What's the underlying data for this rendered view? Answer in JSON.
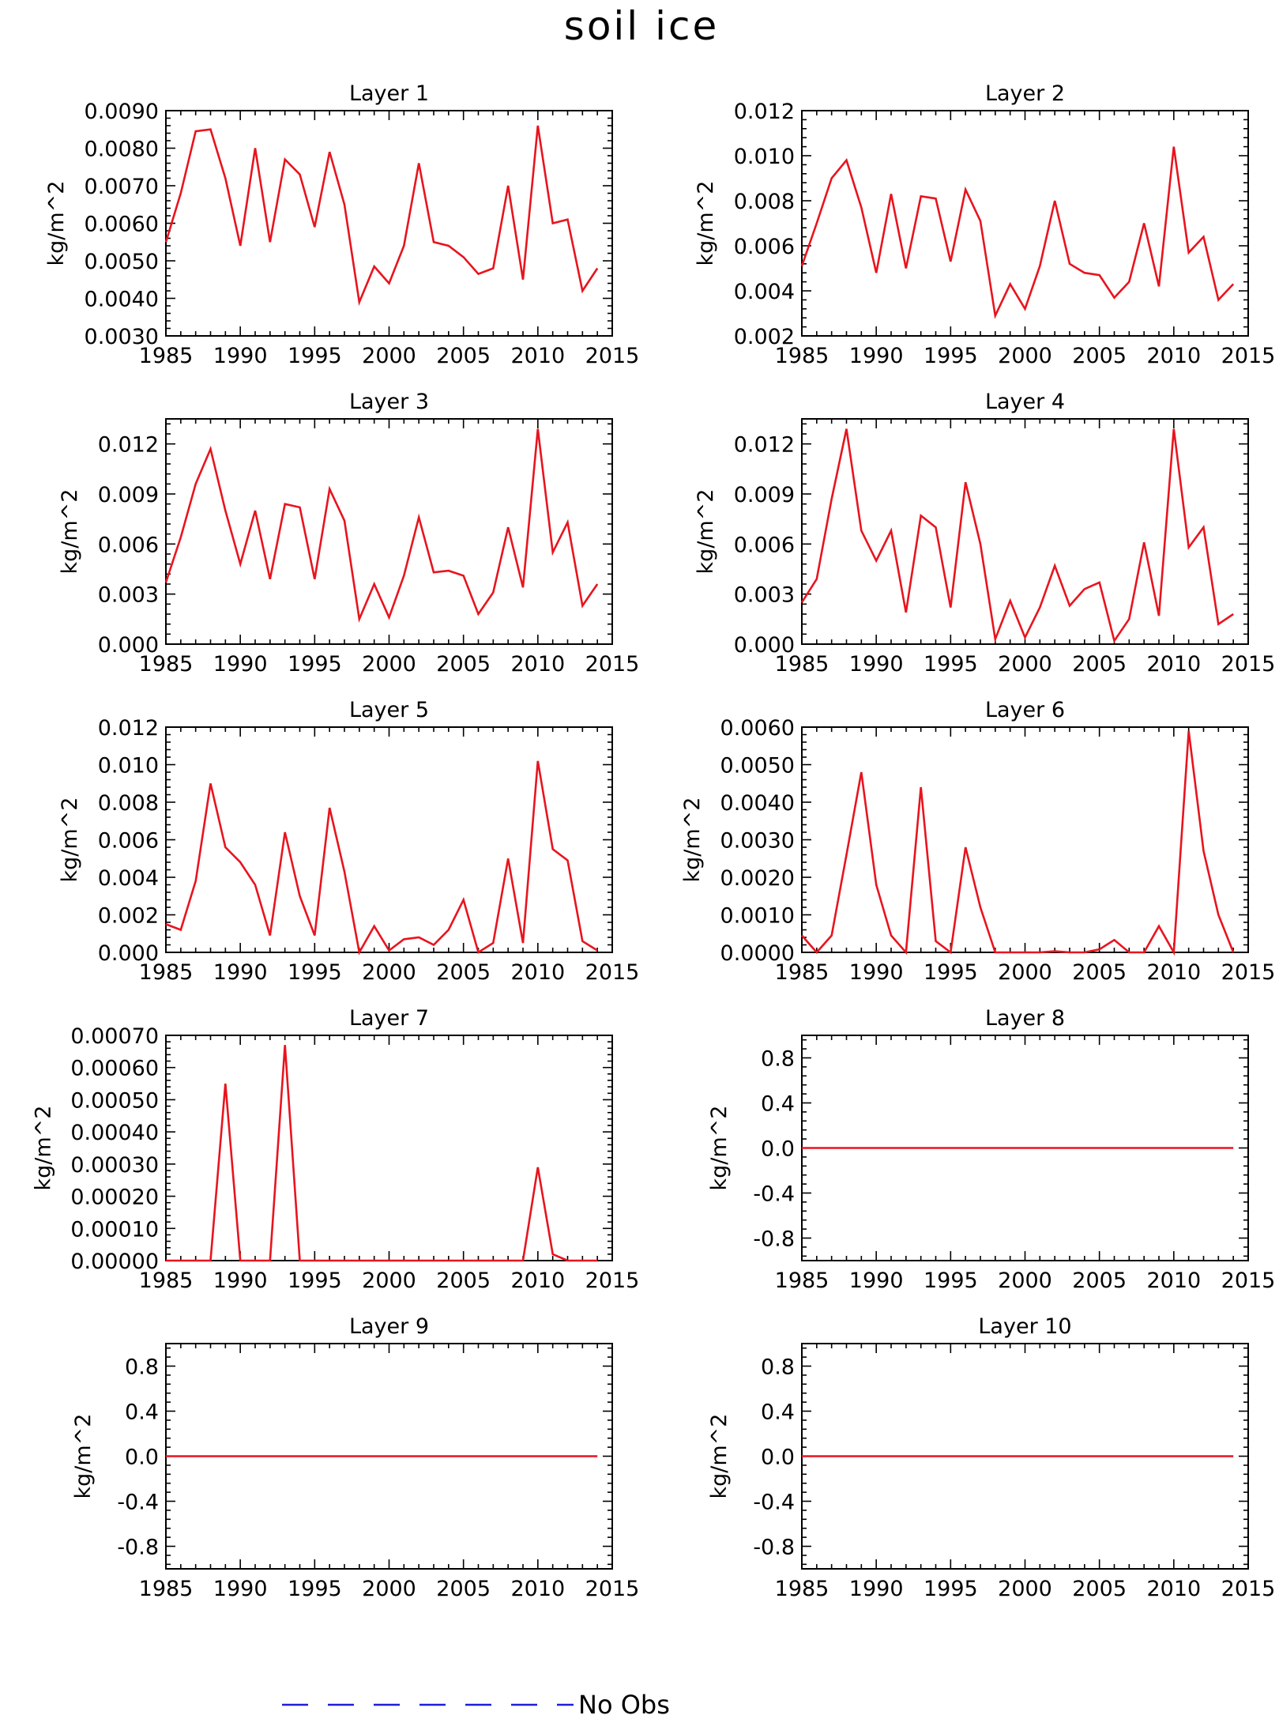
{
  "figure": {
    "title": "soil ice",
    "legend": {
      "label": "No Obs",
      "color": "#1f1fd6",
      "style": "dashed"
    },
    "series_color": "#e8141e"
  },
  "chart_data": [
    {
      "type": "line",
      "title": "Layer 1",
      "ylabel": "kg/m^2",
      "xlim": [
        1985,
        2015
      ],
      "ylim": [
        0.003,
        0.009
      ],
      "yticks": [
        "0.0030",
        "0.0040",
        "0.0050",
        "0.0060",
        "0.0070",
        "0.0080",
        "0.0090"
      ],
      "yticks_values": [
        0.003,
        0.004,
        0.005,
        0.006,
        0.007,
        0.008,
        0.009
      ],
      "xticks": [
        1985,
        1990,
        1995,
        2000,
        2005,
        2010,
        2015
      ],
      "x": [
        1985,
        1986,
        1987,
        1988,
        1989,
        1990,
        1991,
        1992,
        1993,
        1994,
        1995,
        1996,
        1997,
        1998,
        1999,
        2000,
        2001,
        2002,
        2003,
        2004,
        2005,
        2006,
        2007,
        2008,
        2009,
        2010,
        2011,
        2012,
        2013,
        2014
      ],
      "y": [
        0.0055,
        0.0068,
        0.00845,
        0.0085,
        0.0072,
        0.0054,
        0.008,
        0.0055,
        0.0077,
        0.0073,
        0.0059,
        0.0079,
        0.0065,
        0.0039,
        0.00485,
        0.0044,
        0.0054,
        0.0076,
        0.0055,
        0.0054,
        0.0051,
        0.00465,
        0.0048,
        0.007,
        0.0045,
        0.0086,
        0.006,
        0.0061,
        0.0042,
        0.0048
      ]
    },
    {
      "type": "line",
      "title": "Layer 2",
      "ylabel": "kg/m^2",
      "xlim": [
        1985,
        2015
      ],
      "ylim": [
        0.002,
        0.012
      ],
      "yticks": [
        "0.002",
        "0.004",
        "0.006",
        "0.008",
        "0.010",
        "0.012"
      ],
      "yticks_values": [
        0.002,
        0.004,
        0.006,
        0.008,
        0.01,
        0.012
      ],
      "xticks": [
        1985,
        1990,
        1995,
        2000,
        2005,
        2010,
        2015
      ],
      "x": [
        1985,
        1986,
        1987,
        1988,
        1989,
        1990,
        1991,
        1992,
        1993,
        1994,
        1995,
        1996,
        1997,
        1998,
        1999,
        2000,
        2001,
        2002,
        2003,
        2004,
        2005,
        2006,
        2007,
        2008,
        2009,
        2010,
        2011,
        2012,
        2013,
        2014
      ],
      "y": [
        0.0051,
        0.007,
        0.009,
        0.0098,
        0.0077,
        0.0048,
        0.0083,
        0.005,
        0.0082,
        0.0081,
        0.0053,
        0.0085,
        0.0071,
        0.0029,
        0.0043,
        0.0032,
        0.0051,
        0.008,
        0.0052,
        0.0048,
        0.0047,
        0.0037,
        0.0044,
        0.007,
        0.0042,
        0.0104,
        0.0057,
        0.0064,
        0.0036,
        0.0043
      ]
    },
    {
      "type": "line",
      "title": "Layer 3",
      "ylabel": "kg/m^2",
      "xlim": [
        1985,
        2015
      ],
      "ylim": [
        0,
        0.0135
      ],
      "yticks": [
        "0.000",
        "0.003",
        "0.006",
        "0.009",
        "0.012"
      ],
      "yticks_values": [
        0,
        0.003,
        0.006,
        0.009,
        0.012
      ],
      "xticks": [
        1985,
        1990,
        1995,
        2000,
        2005,
        2010,
        2015
      ],
      "x": [
        1985,
        1986,
        1987,
        1988,
        1989,
        1990,
        1991,
        1992,
        1993,
        1994,
        1995,
        1996,
        1997,
        1998,
        1999,
        2000,
        2001,
        2002,
        2003,
        2004,
        2005,
        2006,
        2007,
        2008,
        2009,
        2010,
        2011,
        2012,
        2013,
        2014
      ],
      "y": [
        0.0037,
        0.0064,
        0.0096,
        0.0117,
        0.008,
        0.0048,
        0.008,
        0.0039,
        0.0084,
        0.0082,
        0.0039,
        0.0093,
        0.0074,
        0.0015,
        0.0036,
        0.0016,
        0.0041,
        0.0076,
        0.0043,
        0.0044,
        0.0041,
        0.0018,
        0.0031,
        0.007,
        0.0034,
        0.0129,
        0.0055,
        0.0073,
        0.0023,
        0.0036
      ]
    },
    {
      "type": "line",
      "title": "Layer 4",
      "ylabel": "kg/m^2",
      "xlim": [
        1985,
        2015
      ],
      "ylim": [
        0,
        0.0135
      ],
      "yticks": [
        "0.000",
        "0.003",
        "0.006",
        "0.009",
        "0.012"
      ],
      "yticks_values": [
        0,
        0.003,
        0.006,
        0.009,
        0.012
      ],
      "xticks": [
        1985,
        1990,
        1995,
        2000,
        2005,
        2010,
        2015
      ],
      "x": [
        1985,
        1986,
        1987,
        1988,
        1989,
        1990,
        1991,
        1992,
        1993,
        1994,
        1995,
        1996,
        1997,
        1998,
        1999,
        2000,
        2001,
        2002,
        2003,
        2004,
        2005,
        2006,
        2007,
        2008,
        2009,
        2010,
        2011,
        2012,
        2013,
        2014
      ],
      "y": [
        0.0025,
        0.0039,
        0.0087,
        0.0129,
        0.0068,
        0.005,
        0.0068,
        0.0019,
        0.0077,
        0.007,
        0.0022,
        0.0097,
        0.006,
        0.0003,
        0.0026,
        0.0004,
        0.0022,
        0.0047,
        0.0023,
        0.0033,
        0.0037,
        0.0002,
        0.0015,
        0.0061,
        0.0017,
        0.0129,
        0.0058,
        0.007,
        0.0012,
        0.0018
      ]
    },
    {
      "type": "line",
      "title": "Layer 5",
      "ylabel": "kg/m^2",
      "xlim": [
        1985,
        2015
      ],
      "ylim": [
        0,
        0.012
      ],
      "yticks": [
        "0.000",
        "0.002",
        "0.004",
        "0.006",
        "0.008",
        "0.010",
        "0.012"
      ],
      "yticks_values": [
        0,
        0.002,
        0.004,
        0.006,
        0.008,
        0.01,
        0.012
      ],
      "xticks": [
        1985,
        1990,
        1995,
        2000,
        2005,
        2010,
        2015
      ],
      "x": [
        1985,
        1986,
        1987,
        1988,
        1989,
        1990,
        1991,
        1992,
        1993,
        1994,
        1995,
        1996,
        1997,
        1998,
        1999,
        2000,
        2001,
        2002,
        2003,
        2004,
        2005,
        2006,
        2007,
        2008,
        2009,
        2010,
        2011,
        2012,
        2013,
        2014
      ],
      "y": [
        0.0015,
        0.0012,
        0.0038,
        0.009,
        0.0056,
        0.0048,
        0.0036,
        0.0009,
        0.0064,
        0.003,
        0.0009,
        0.0077,
        0.0043,
        0.0,
        0.0014,
        0.0001,
        0.0007,
        0.0008,
        0.0004,
        0.0012,
        0.0028,
        0.0,
        0.0005,
        0.005,
        0.0005,
        0.0102,
        0.0055,
        0.0049,
        0.0006,
        0.0001
      ]
    },
    {
      "type": "line",
      "title": "Layer 6",
      "ylabel": "kg/m^2",
      "xlim": [
        1985,
        2015
      ],
      "ylim": [
        0,
        0.006
      ],
      "yticks": [
        "0.0000",
        "0.0010",
        "0.0020",
        "0.0030",
        "0.0040",
        "0.0050",
        "0.0060"
      ],
      "yticks_values": [
        0,
        0.001,
        0.002,
        0.003,
        0.004,
        0.005,
        0.006
      ],
      "xticks": [
        1985,
        1990,
        1995,
        2000,
        2005,
        2010,
        2015
      ],
      "x": [
        1985,
        1986,
        1987,
        1988,
        1989,
        1990,
        1991,
        1992,
        1993,
        1994,
        1995,
        1996,
        1997,
        1998,
        1999,
        2000,
        2001,
        2002,
        2003,
        2004,
        2005,
        2006,
        2007,
        2008,
        2009,
        2010,
        2011,
        2012,
        2013,
        2014
      ],
      "y": [
        0.00045,
        0.0,
        0.00045,
        0.0026,
        0.0048,
        0.0018,
        0.00045,
        0.0,
        0.0044,
        0.0003,
        0.0,
        0.0028,
        0.0012,
        0.0,
        0.0,
        0.0,
        0.0,
        3e-05,
        0.0,
        0.0,
        8e-05,
        0.00033,
        0.0,
        0.0,
        0.0007,
        0.0,
        0.0059,
        0.0027,
        0.001,
        0.0
      ]
    },
    {
      "type": "line",
      "title": "Layer 7",
      "ylabel": "kg/m^2",
      "xlim": [
        1985,
        2015
      ],
      "ylim": [
        0,
        0.0007
      ],
      "yticks": [
        "0.00000",
        "0.00010",
        "0.00020",
        "0.00030",
        "0.00040",
        "0.00050",
        "0.00060",
        "0.00070"
      ],
      "yticks_values": [
        0,
        0.0001,
        0.0002,
        0.0003,
        0.0004,
        0.0005,
        0.0006,
        0.0007
      ],
      "xticks": [
        1985,
        1990,
        1995,
        2000,
        2005,
        2010,
        2015
      ],
      "x": [
        1985,
        1986,
        1987,
        1988,
        1989,
        1990,
        1991,
        1992,
        1993,
        1994,
        1995,
        1996,
        1997,
        1998,
        1999,
        2000,
        2001,
        2002,
        2003,
        2004,
        2005,
        2006,
        2007,
        2008,
        2009,
        2010,
        2011,
        2012,
        2013,
        2014
      ],
      "y": [
        0,
        0,
        0,
        0,
        0.00055,
        0,
        0,
        0,
        0.00067,
        0,
        0,
        0,
        0,
        0,
        0,
        0,
        0,
        0,
        0,
        0,
        0,
        0,
        0,
        0,
        0,
        0.00029,
        2e-05,
        0,
        0,
        0
      ]
    },
    {
      "type": "line",
      "title": "Layer 8",
      "ylabel": "kg/m^2",
      "xlim": [
        1985,
        2015
      ],
      "ylim": [
        -1,
        1
      ],
      "yticks": [
        "-0.8",
        "-0.4",
        "0.0",
        "0.4",
        "0.8"
      ],
      "yticks_values": [
        -0.8,
        -0.4,
        0,
        0.4,
        0.8
      ],
      "xticks": [
        1985,
        1990,
        1995,
        2000,
        2005,
        2010,
        2015
      ],
      "x": [
        1985,
        2014
      ],
      "y": [
        0,
        0
      ]
    },
    {
      "type": "line",
      "title": "Layer 9",
      "ylabel": "kg/m^2",
      "xlim": [
        1985,
        2015
      ],
      "ylim": [
        -1,
        1
      ],
      "yticks": [
        "-0.8",
        "-0.4",
        "0.0",
        "0.4",
        "0.8"
      ],
      "yticks_values": [
        -0.8,
        -0.4,
        0,
        0.4,
        0.8
      ],
      "xticks": [
        1985,
        1990,
        1995,
        2000,
        2005,
        2010,
        2015
      ],
      "x": [
        1985,
        2014
      ],
      "y": [
        0,
        0
      ]
    },
    {
      "type": "line",
      "title": "Layer 10",
      "ylabel": "kg/m^2",
      "xlim": [
        1985,
        2015
      ],
      "ylim": [
        -1,
        1
      ],
      "yticks": [
        "-0.8",
        "-0.4",
        "0.0",
        "0.4",
        "0.8"
      ],
      "yticks_values": [
        -0.8,
        -0.4,
        0,
        0.4,
        0.8
      ],
      "xticks": [
        1985,
        1990,
        1995,
        2000,
        2005,
        2010,
        2015
      ],
      "x": [
        1985,
        2014
      ],
      "y": [
        0,
        0
      ]
    }
  ]
}
